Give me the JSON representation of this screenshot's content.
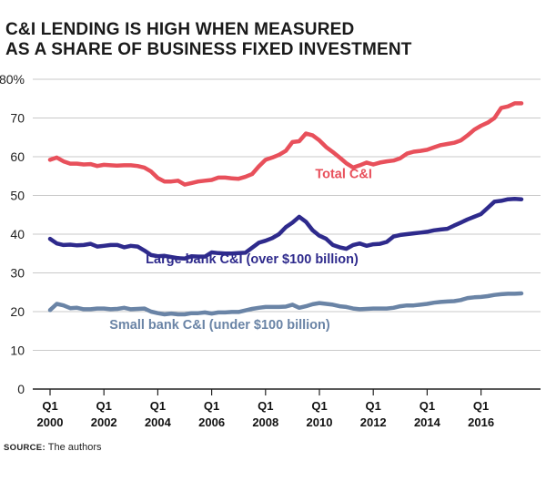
{
  "header": {
    "title_line1": "C&I LENDING IS HIGH WHEN MEASURED",
    "title_line2": "AS A SHARE OF BUSINESS FIXED INVESTMENT"
  },
  "source": {
    "label": "SOURCE:",
    "text": "The authors"
  },
  "chart_data": {
    "type": "line",
    "title": "C&I LENDING IS HIGH WHEN MEASURED AS A SHARE OF BUSINESS FIXED INVESTMENT",
    "xlabel": "",
    "ylabel": "",
    "ylim": [
      0,
      80
    ],
    "xlim": [
      2000.0,
      2017.5
    ],
    "grid": true,
    "y_ticks": [
      0,
      10,
      20,
      30,
      40,
      50,
      60,
      70,
      80
    ],
    "y_tick_labels": [
      "0",
      "10",
      "20",
      "30",
      "40",
      "50",
      "60",
      "70",
      "80%"
    ],
    "x_ticks": [
      {
        "x": 2000,
        "quarter": "Q1",
        "year": "2000"
      },
      {
        "x": 2002,
        "quarter": "Q1",
        "year": "2002"
      },
      {
        "x": 2004,
        "quarter": "Q1",
        "year": "2004"
      },
      {
        "x": 2006,
        "quarter": "Q1",
        "year": "2006"
      },
      {
        "x": 2008,
        "quarter": "Q1",
        "year": "2008"
      },
      {
        "x": 2010,
        "quarter": "Q1",
        "year": "2010"
      },
      {
        "x": 2012,
        "quarter": "Q1",
        "year": "2012"
      },
      {
        "x": 2014,
        "quarter": "Q1",
        "year": "2014"
      },
      {
        "x": 2016,
        "quarter": "Q1",
        "year": "2016"
      }
    ],
    "series": [
      {
        "name": "Total C&I",
        "color": "#e8505b",
        "label_anchor": {
          "x": 2010.9,
          "y": 54.5
        },
        "points": [
          [
            2000.0,
            59.2
          ],
          [
            2000.25,
            59.8
          ],
          [
            2000.5,
            58.8
          ],
          [
            2000.75,
            58.2
          ],
          [
            2001.0,
            58.2
          ],
          [
            2001.25,
            58.0
          ],
          [
            2001.5,
            58.1
          ],
          [
            2001.75,
            57.6
          ],
          [
            2002.0,
            57.9
          ],
          [
            2002.25,
            57.8
          ],
          [
            2002.5,
            57.7
          ],
          [
            2002.75,
            57.8
          ],
          [
            2003.0,
            57.8
          ],
          [
            2003.25,
            57.6
          ],
          [
            2003.5,
            57.2
          ],
          [
            2003.75,
            56.2
          ],
          [
            2004.0,
            54.5
          ],
          [
            2004.25,
            53.6
          ],
          [
            2004.5,
            53.6
          ],
          [
            2004.75,
            53.8
          ],
          [
            2005.0,
            52.8
          ],
          [
            2005.25,
            53.2
          ],
          [
            2005.5,
            53.6
          ],
          [
            2005.75,
            53.8
          ],
          [
            2006.0,
            54.0
          ],
          [
            2006.25,
            54.6
          ],
          [
            2006.5,
            54.6
          ],
          [
            2006.75,
            54.4
          ],
          [
            2007.0,
            54.3
          ],
          [
            2007.25,
            54.8
          ],
          [
            2007.5,
            55.5
          ],
          [
            2007.75,
            57.5
          ],
          [
            2008.0,
            59.2
          ],
          [
            2008.25,
            59.8
          ],
          [
            2008.5,
            60.5
          ],
          [
            2008.75,
            61.5
          ],
          [
            2009.0,
            63.8
          ],
          [
            2009.25,
            64.0
          ],
          [
            2009.5,
            66.0
          ],
          [
            2009.75,
            65.5
          ],
          [
            2010.0,
            64.2
          ],
          [
            2010.25,
            62.5
          ],
          [
            2010.5,
            61.2
          ],
          [
            2010.75,
            59.8
          ],
          [
            2011.0,
            58.3
          ],
          [
            2011.25,
            57.2
          ],
          [
            2011.5,
            57.8
          ],
          [
            2011.75,
            58.5
          ],
          [
            2012.0,
            58.0
          ],
          [
            2012.25,
            58.5
          ],
          [
            2012.5,
            58.8
          ],
          [
            2012.75,
            59.0
          ],
          [
            2013.0,
            59.6
          ],
          [
            2013.25,
            60.8
          ],
          [
            2013.5,
            61.3
          ],
          [
            2013.75,
            61.5
          ],
          [
            2014.0,
            61.8
          ],
          [
            2014.25,
            62.4
          ],
          [
            2014.5,
            63.0
          ],
          [
            2014.75,
            63.3
          ],
          [
            2015.0,
            63.6
          ],
          [
            2015.25,
            64.2
          ],
          [
            2015.5,
            65.5
          ],
          [
            2015.75,
            67.0
          ],
          [
            2016.0,
            68.0
          ],
          [
            2016.25,
            68.8
          ],
          [
            2016.5,
            70.0
          ],
          [
            2016.75,
            72.6
          ],
          [
            2017.0,
            73.0
          ],
          [
            2017.25,
            73.8
          ],
          [
            2017.5,
            73.8
          ]
        ]
      },
      {
        "name": "Large bank C&I (over $100 billion)",
        "color": "#2e2a8c",
        "label_anchor": {
          "x": 2007.5,
          "y": 32.5
        },
        "points": [
          [
            2000.0,
            38.8
          ],
          [
            2000.25,
            37.6
          ],
          [
            2000.5,
            37.2
          ],
          [
            2000.75,
            37.3
          ],
          [
            2001.0,
            37.1
          ],
          [
            2001.25,
            37.2
          ],
          [
            2001.5,
            37.5
          ],
          [
            2001.75,
            36.8
          ],
          [
            2002.0,
            37.0
          ],
          [
            2002.25,
            37.2
          ],
          [
            2002.5,
            37.2
          ],
          [
            2002.75,
            36.6
          ],
          [
            2003.0,
            37.0
          ],
          [
            2003.25,
            36.8
          ],
          [
            2003.5,
            35.8
          ],
          [
            2003.75,
            34.6
          ],
          [
            2004.0,
            34.3
          ],
          [
            2004.25,
            34.4
          ],
          [
            2004.5,
            34.1
          ],
          [
            2004.75,
            33.8
          ],
          [
            2005.0,
            33.7
          ],
          [
            2005.25,
            34.3
          ],
          [
            2005.5,
            34.2
          ],
          [
            2005.75,
            34.2
          ],
          [
            2006.0,
            35.3
          ],
          [
            2006.25,
            35.1
          ],
          [
            2006.5,
            35.0
          ],
          [
            2006.75,
            35.0
          ],
          [
            2007.0,
            35.1
          ],
          [
            2007.25,
            35.2
          ],
          [
            2007.5,
            36.5
          ],
          [
            2007.75,
            37.8
          ],
          [
            2008.0,
            38.3
          ],
          [
            2008.25,
            39.0
          ],
          [
            2008.5,
            40.0
          ],
          [
            2008.75,
            41.8
          ],
          [
            2009.0,
            43.0
          ],
          [
            2009.25,
            44.5
          ],
          [
            2009.5,
            43.2
          ],
          [
            2009.75,
            41.0
          ],
          [
            2010.0,
            39.6
          ],
          [
            2010.25,
            38.8
          ],
          [
            2010.5,
            37.2
          ],
          [
            2010.75,
            36.6
          ],
          [
            2011.0,
            36.2
          ],
          [
            2011.25,
            37.2
          ],
          [
            2011.5,
            37.6
          ],
          [
            2011.75,
            37.0
          ],
          [
            2012.0,
            37.4
          ],
          [
            2012.25,
            37.5
          ],
          [
            2012.5,
            38.0
          ],
          [
            2012.75,
            39.4
          ],
          [
            2013.0,
            39.8
          ],
          [
            2013.25,
            40.0
          ],
          [
            2013.5,
            40.2
          ],
          [
            2013.75,
            40.4
          ],
          [
            2014.0,
            40.6
          ],
          [
            2014.25,
            41.0
          ],
          [
            2014.5,
            41.2
          ],
          [
            2014.75,
            41.4
          ],
          [
            2015.0,
            42.2
          ],
          [
            2015.25,
            43.0
          ],
          [
            2015.5,
            43.8
          ],
          [
            2015.75,
            44.5
          ],
          [
            2016.0,
            45.2
          ],
          [
            2016.25,
            46.8
          ],
          [
            2016.5,
            48.4
          ],
          [
            2016.75,
            48.6
          ],
          [
            2017.0,
            49.0
          ],
          [
            2017.25,
            49.1
          ],
          [
            2017.5,
            49.0
          ]
        ]
      },
      {
        "name": "Small bank C&I (under $100 billion)",
        "color": "#6a84a6",
        "label_anchor": {
          "x": 2006.3,
          "y": 15.5
        },
        "points": [
          [
            2000.0,
            20.4
          ],
          [
            2000.25,
            22.0
          ],
          [
            2000.5,
            21.6
          ],
          [
            2000.75,
            20.9
          ],
          [
            2001.0,
            21.0
          ],
          [
            2001.25,
            20.6
          ],
          [
            2001.5,
            20.6
          ],
          [
            2001.75,
            20.8
          ],
          [
            2002.0,
            20.8
          ],
          [
            2002.25,
            20.6
          ],
          [
            2002.5,
            20.7
          ],
          [
            2002.75,
            21.0
          ],
          [
            2003.0,
            20.6
          ],
          [
            2003.25,
            20.7
          ],
          [
            2003.5,
            20.8
          ],
          [
            2003.75,
            20.0
          ],
          [
            2004.0,
            19.6
          ],
          [
            2004.25,
            19.3
          ],
          [
            2004.5,
            19.5
          ],
          [
            2004.75,
            19.3
          ],
          [
            2005.0,
            19.3
          ],
          [
            2005.25,
            19.6
          ],
          [
            2005.5,
            19.6
          ],
          [
            2005.75,
            19.8
          ],
          [
            2006.0,
            19.5
          ],
          [
            2006.25,
            19.8
          ],
          [
            2006.5,
            19.8
          ],
          [
            2006.75,
            19.9
          ],
          [
            2007.0,
            19.9
          ],
          [
            2007.25,
            20.3
          ],
          [
            2007.5,
            20.7
          ],
          [
            2007.75,
            21.0
          ],
          [
            2008.0,
            21.2
          ],
          [
            2008.25,
            21.2
          ],
          [
            2008.5,
            21.2
          ],
          [
            2008.75,
            21.3
          ],
          [
            2009.0,
            21.8
          ],
          [
            2009.25,
            21.0
          ],
          [
            2009.5,
            21.4
          ],
          [
            2009.75,
            21.9
          ],
          [
            2010.0,
            22.2
          ],
          [
            2010.25,
            22.0
          ],
          [
            2010.5,
            21.8
          ],
          [
            2010.75,
            21.4
          ],
          [
            2011.0,
            21.2
          ],
          [
            2011.25,
            20.8
          ],
          [
            2011.5,
            20.6
          ],
          [
            2011.75,
            20.7
          ],
          [
            2012.0,
            20.8
          ],
          [
            2012.25,
            20.8
          ],
          [
            2012.5,
            20.8
          ],
          [
            2012.75,
            21.0
          ],
          [
            2013.0,
            21.4
          ],
          [
            2013.25,
            21.6
          ],
          [
            2013.5,
            21.6
          ],
          [
            2013.75,
            21.8
          ],
          [
            2014.0,
            22.0
          ],
          [
            2014.25,
            22.3
          ],
          [
            2014.5,
            22.5
          ],
          [
            2014.75,
            22.6
          ],
          [
            2015.0,
            22.7
          ],
          [
            2015.25,
            23.0
          ],
          [
            2015.5,
            23.5
          ],
          [
            2015.75,
            23.7
          ],
          [
            2016.0,
            23.8
          ],
          [
            2016.25,
            24.0
          ],
          [
            2016.5,
            24.3
          ],
          [
            2016.75,
            24.5
          ],
          [
            2017.0,
            24.6
          ],
          [
            2017.25,
            24.6
          ],
          [
            2017.5,
            24.7
          ]
        ]
      }
    ]
  }
}
